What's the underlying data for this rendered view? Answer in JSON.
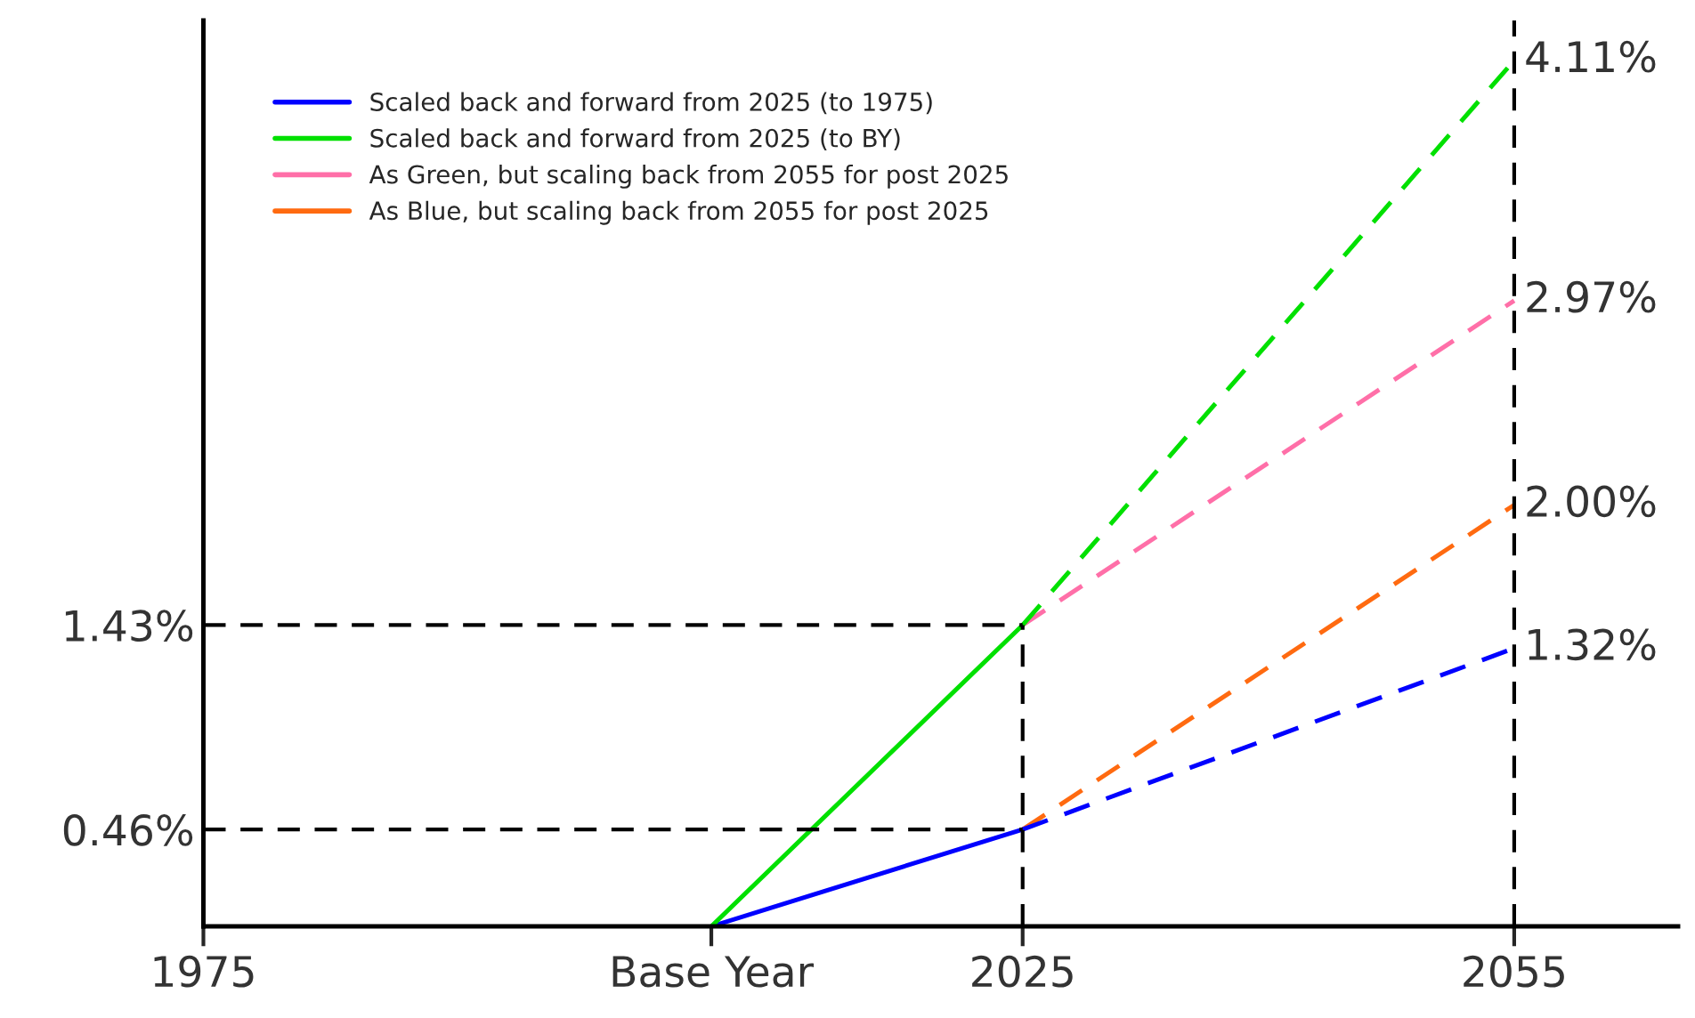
{
  "chart_data": {
    "type": "line",
    "xlim": [
      1975,
      2065
    ],
    "ylim": [
      0,
      4.3
    ],
    "xticks": [
      1975,
      {
        "value": 2006,
        "label": "Base Year"
      },
      2025,
      2055
    ],
    "yticks": [
      {
        "value": 0.46,
        "label": "0.46%"
      },
      {
        "value": 1.43,
        "label": "1.43%"
      }
    ],
    "grid": false,
    "legend": "top left",
    "series": [
      {
        "name": "Scaled back and forward from 2025 (to 1975)",
        "color": "#0000ff",
        "x": [
          2006,
          2025
        ],
        "values": [
          0,
          0.46
        ],
        "line_style": "solid"
      },
      {
        "name": "Scaled back and forward from 2025 (to BY)",
        "color": "#00e000",
        "x": [
          2006,
          2025
        ],
        "values": [
          0,
          1.43
        ],
        "line_style": "solid"
      },
      {
        "name": "As Green, but scaling back from 2055 for post 2025",
        "color": "#ff6fa8",
        "x": [
          2025,
          2055
        ],
        "values": [
          1.43,
          2.97
        ],
        "line_style": "dashed",
        "value_labels": [
          null,
          "2.97%"
        ]
      },
      {
        "name": "As Blue, but scaling back from 2055 for post 2025",
        "color": "#ff6a10",
        "x": [
          2025,
          2055
        ],
        "values": [
          0.46,
          2.0
        ],
        "line_style": "dashed",
        "value_labels": [
          null,
          "2.00%"
        ]
      },
      {
        "color": "#0000ff",
        "x": [
          2025,
          2055
        ],
        "values": [
          0.46,
          1.32
        ],
        "line_style": "dashed",
        "value_labels": [
          null,
          "1.32%"
        ]
      },
      {
        "color": "#00e000",
        "x": [
          2025,
          2055
        ],
        "values": [
          1.43,
          4.11
        ],
        "line_style": "dashed",
        "value_labels": [
          null,
          "4.11%"
        ]
      }
    ],
    "ref_lines": [
      {
        "axis": "y",
        "value": 0.46,
        "color": "#000000",
        "line_style": "dashed"
      },
      {
        "axis": "y",
        "value": 1.43,
        "color": "#000000",
        "line_style": "dashed"
      },
      {
        "axis": "x",
        "value": 2025,
        "color": "#000000",
        "line_style": "dashed"
      },
      {
        "axis": "x",
        "value": 2055,
        "color": "#000000",
        "line_style": "dashed"
      }
    ]
  }
}
